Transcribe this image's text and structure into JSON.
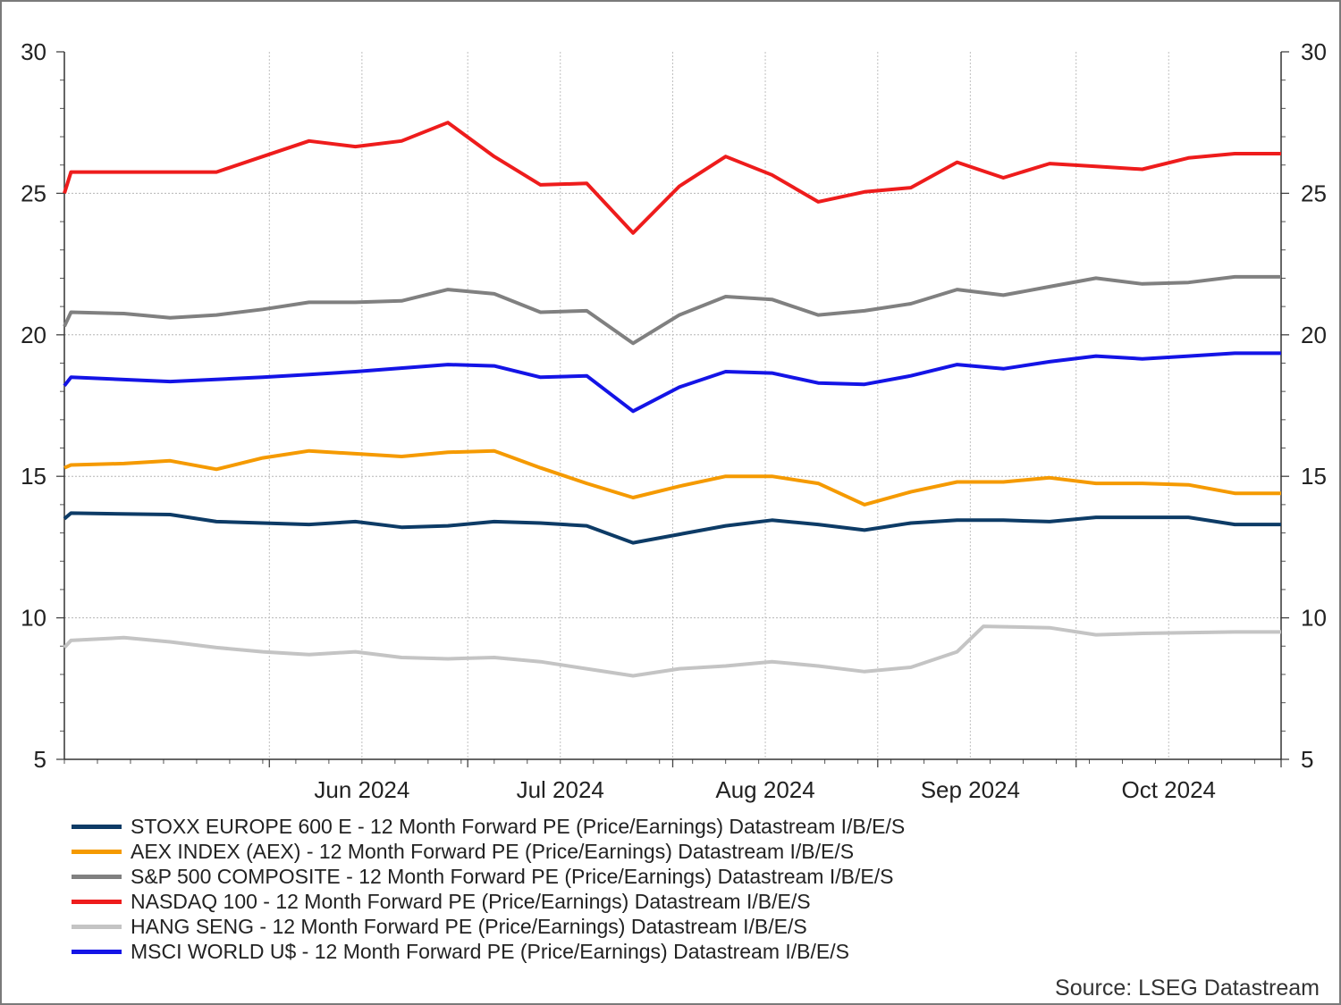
{
  "chart_data": {
    "type": "line",
    "title": "",
    "source": "Source: LSEG Datastream",
    "ylim": [
      5,
      30
    ],
    "y_ticks": [
      5,
      10,
      15,
      20,
      25,
      30
    ],
    "x_range": [
      "2024-05-01",
      "2024-11-01"
    ],
    "x_tick_labels": [
      {
        "date": "2024-06-15",
        "label": "Jun 2024"
      },
      {
        "date": "2024-07-15",
        "label": "Jul 2024"
      },
      {
        "date": "2024-08-15",
        "label": "Aug 2024"
      },
      {
        "date": "2024-09-15",
        "label": "Sep 2024"
      },
      {
        "date": "2024-10-15",
        "label": "Oct 2024"
      }
    ],
    "month_starts": [
      "2024-06-01",
      "2024-07-01",
      "2024-08-01",
      "2024-09-01",
      "2024-10-01",
      "2024-11-01"
    ],
    "grid": true,
    "dual_y_axis": true,
    "legend_position": "bottom",
    "series": [
      {
        "name": "STOXX EUROPE 600 E - 12 Month Forward PE (Price/Earnings) Datastream I/B/E/S",
        "color": "#0d3b66",
        "points": [
          [
            "2024-05-01",
            13.5
          ],
          [
            "2024-05-02",
            13.7
          ],
          [
            "2024-05-17",
            13.65
          ],
          [
            "2024-05-24",
            13.4
          ],
          [
            "2024-05-31",
            13.35
          ],
          [
            "2024-06-07",
            13.3
          ],
          [
            "2024-06-14",
            13.4
          ],
          [
            "2024-06-21",
            13.2
          ],
          [
            "2024-06-28",
            13.25
          ],
          [
            "2024-07-05",
            13.4
          ],
          [
            "2024-07-12",
            13.35
          ],
          [
            "2024-07-19",
            13.25
          ],
          [
            "2024-07-26",
            12.65
          ],
          [
            "2024-08-02",
            12.95
          ],
          [
            "2024-08-09",
            13.25
          ],
          [
            "2024-08-16",
            13.45
          ],
          [
            "2024-08-23",
            13.3
          ],
          [
            "2024-08-30",
            13.1
          ],
          [
            "2024-09-06",
            13.35
          ],
          [
            "2024-09-13",
            13.45
          ],
          [
            "2024-09-20",
            13.45
          ],
          [
            "2024-09-27",
            13.4
          ],
          [
            "2024-10-04",
            13.55
          ],
          [
            "2024-10-11",
            13.55
          ],
          [
            "2024-10-18",
            13.55
          ],
          [
            "2024-10-25",
            13.3
          ],
          [
            "2024-11-01",
            13.3
          ]
        ]
      },
      {
        "name": "AEX INDEX (AEX) - 12 Month Forward PE (Price/Earnings) Datastream I/B/E/S",
        "color": "#f59a00",
        "points": [
          [
            "2024-05-01",
            15.3
          ],
          [
            "2024-05-02",
            15.4
          ],
          [
            "2024-05-10",
            15.45
          ],
          [
            "2024-05-17",
            15.55
          ],
          [
            "2024-05-24",
            15.25
          ],
          [
            "2024-05-31",
            15.65
          ],
          [
            "2024-06-07",
            15.9
          ],
          [
            "2024-06-14",
            15.8
          ],
          [
            "2024-06-21",
            15.7
          ],
          [
            "2024-06-28",
            15.85
          ],
          [
            "2024-07-05",
            15.9
          ],
          [
            "2024-07-12",
            15.3
          ],
          [
            "2024-07-19",
            14.75
          ],
          [
            "2024-07-26",
            14.25
          ],
          [
            "2024-08-02",
            14.65
          ],
          [
            "2024-08-09",
            15.0
          ],
          [
            "2024-08-16",
            15.0
          ],
          [
            "2024-08-23",
            14.75
          ],
          [
            "2024-08-30",
            14.0
          ],
          [
            "2024-09-06",
            14.45
          ],
          [
            "2024-09-13",
            14.8
          ],
          [
            "2024-09-20",
            14.8
          ],
          [
            "2024-09-27",
            14.95
          ],
          [
            "2024-10-04",
            14.75
          ],
          [
            "2024-10-11",
            14.75
          ],
          [
            "2024-10-18",
            14.7
          ],
          [
            "2024-10-25",
            14.4
          ],
          [
            "2024-11-01",
            14.4
          ]
        ]
      },
      {
        "name": "S&P 500 COMPOSITE - 12 Month Forward PE (Price/Earnings) Datastream I/B/E/S",
        "color": "#808080",
        "points": [
          [
            "2024-05-01",
            20.3
          ],
          [
            "2024-05-02",
            20.8
          ],
          [
            "2024-05-10",
            20.75
          ],
          [
            "2024-05-17",
            20.6
          ],
          [
            "2024-05-24",
            20.7
          ],
          [
            "2024-05-31",
            20.9
          ],
          [
            "2024-06-07",
            21.15
          ],
          [
            "2024-06-14",
            21.15
          ],
          [
            "2024-06-21",
            21.2
          ],
          [
            "2024-06-28",
            21.6
          ],
          [
            "2024-07-05",
            21.45
          ],
          [
            "2024-07-12",
            20.8
          ],
          [
            "2024-07-19",
            20.85
          ],
          [
            "2024-07-26",
            19.7
          ],
          [
            "2024-08-02",
            20.7
          ],
          [
            "2024-08-09",
            21.35
          ],
          [
            "2024-08-16",
            21.25
          ],
          [
            "2024-08-23",
            20.7
          ],
          [
            "2024-08-30",
            20.85
          ],
          [
            "2024-09-06",
            21.1
          ],
          [
            "2024-09-13",
            21.6
          ],
          [
            "2024-09-20",
            21.4
          ],
          [
            "2024-09-27",
            21.7
          ],
          [
            "2024-10-04",
            22.0
          ],
          [
            "2024-10-11",
            21.8
          ],
          [
            "2024-10-18",
            21.85
          ],
          [
            "2024-10-25",
            22.05
          ],
          [
            "2024-11-01",
            22.05
          ]
        ]
      },
      {
        "name": "NASDAQ 100 - 12 Month Forward PE (Price/Earnings) Datastream I/B/E/S",
        "color": "#ee1c1c",
        "points": [
          [
            "2024-05-01",
            25.0
          ],
          [
            "2024-05-02",
            25.75
          ],
          [
            "2024-05-24",
            25.75
          ],
          [
            "2024-05-31",
            26.3
          ],
          [
            "2024-06-07",
            26.85
          ],
          [
            "2024-06-14",
            26.65
          ],
          [
            "2024-06-21",
            26.85
          ],
          [
            "2024-06-28",
            27.5
          ],
          [
            "2024-07-05",
            26.3
          ],
          [
            "2024-07-12",
            25.3
          ],
          [
            "2024-07-19",
            25.35
          ],
          [
            "2024-07-26",
            23.6
          ],
          [
            "2024-08-02",
            25.25
          ],
          [
            "2024-08-09",
            26.3
          ],
          [
            "2024-08-16",
            25.65
          ],
          [
            "2024-08-23",
            24.7
          ],
          [
            "2024-08-30",
            25.05
          ],
          [
            "2024-09-06",
            25.2
          ],
          [
            "2024-09-13",
            26.1
          ],
          [
            "2024-09-20",
            25.55
          ],
          [
            "2024-09-27",
            26.05
          ],
          [
            "2024-10-04",
            25.95
          ],
          [
            "2024-10-11",
            25.85
          ],
          [
            "2024-10-18",
            26.25
          ],
          [
            "2024-10-25",
            26.4
          ],
          [
            "2024-11-01",
            26.4
          ]
        ]
      },
      {
        "name": "HANG SENG - 12 Month Forward PE (Price/Earnings) Datastream I/B/E/S",
        "color": "#c4c4c4",
        "points": [
          [
            "2024-05-01",
            8.95
          ],
          [
            "2024-05-02",
            9.2
          ],
          [
            "2024-05-10",
            9.3
          ],
          [
            "2024-05-17",
            9.15
          ],
          [
            "2024-05-24",
            8.95
          ],
          [
            "2024-05-31",
            8.8
          ],
          [
            "2024-06-07",
            8.7
          ],
          [
            "2024-06-14",
            8.8
          ],
          [
            "2024-06-21",
            8.6
          ],
          [
            "2024-06-28",
            8.55
          ],
          [
            "2024-07-05",
            8.6
          ],
          [
            "2024-07-12",
            8.45
          ],
          [
            "2024-07-19",
            8.2
          ],
          [
            "2024-07-26",
            7.95
          ],
          [
            "2024-08-02",
            8.2
          ],
          [
            "2024-08-09",
            8.3
          ],
          [
            "2024-08-16",
            8.45
          ],
          [
            "2024-08-23",
            8.3
          ],
          [
            "2024-08-30",
            8.1
          ],
          [
            "2024-09-06",
            8.25
          ],
          [
            "2024-09-13",
            8.8
          ],
          [
            "2024-09-17",
            9.7
          ],
          [
            "2024-09-27",
            9.65
          ],
          [
            "2024-10-04",
            9.4
          ],
          [
            "2024-10-11",
            9.45
          ],
          [
            "2024-10-25",
            9.5
          ],
          [
            "2024-11-01",
            9.5
          ]
        ]
      },
      {
        "name": "MSCI WORLD U$ - 12 Month Forward PE (Price/Earnings) Datastream I/B/E/S",
        "color": "#1414e6",
        "points": [
          [
            "2024-05-01",
            18.2
          ],
          [
            "2024-05-02",
            18.5
          ],
          [
            "2024-05-17",
            18.35
          ],
          [
            "2024-05-31",
            18.5
          ],
          [
            "2024-06-07",
            18.6
          ],
          [
            "2024-06-14",
            18.7
          ],
          [
            "2024-06-28",
            18.95
          ],
          [
            "2024-07-05",
            18.9
          ],
          [
            "2024-07-12",
            18.5
          ],
          [
            "2024-07-19",
            18.55
          ],
          [
            "2024-07-26",
            17.3
          ],
          [
            "2024-08-02",
            18.15
          ],
          [
            "2024-08-09",
            18.7
          ],
          [
            "2024-08-16",
            18.65
          ],
          [
            "2024-08-23",
            18.3
          ],
          [
            "2024-08-30",
            18.25
          ],
          [
            "2024-09-06",
            18.55
          ],
          [
            "2024-09-13",
            18.95
          ],
          [
            "2024-09-20",
            18.8
          ],
          [
            "2024-09-27",
            19.05
          ],
          [
            "2024-10-04",
            19.25
          ],
          [
            "2024-10-11",
            19.15
          ],
          [
            "2024-10-18",
            19.25
          ],
          [
            "2024-10-25",
            19.35
          ],
          [
            "2024-11-01",
            19.35
          ]
        ]
      }
    ]
  }
}
